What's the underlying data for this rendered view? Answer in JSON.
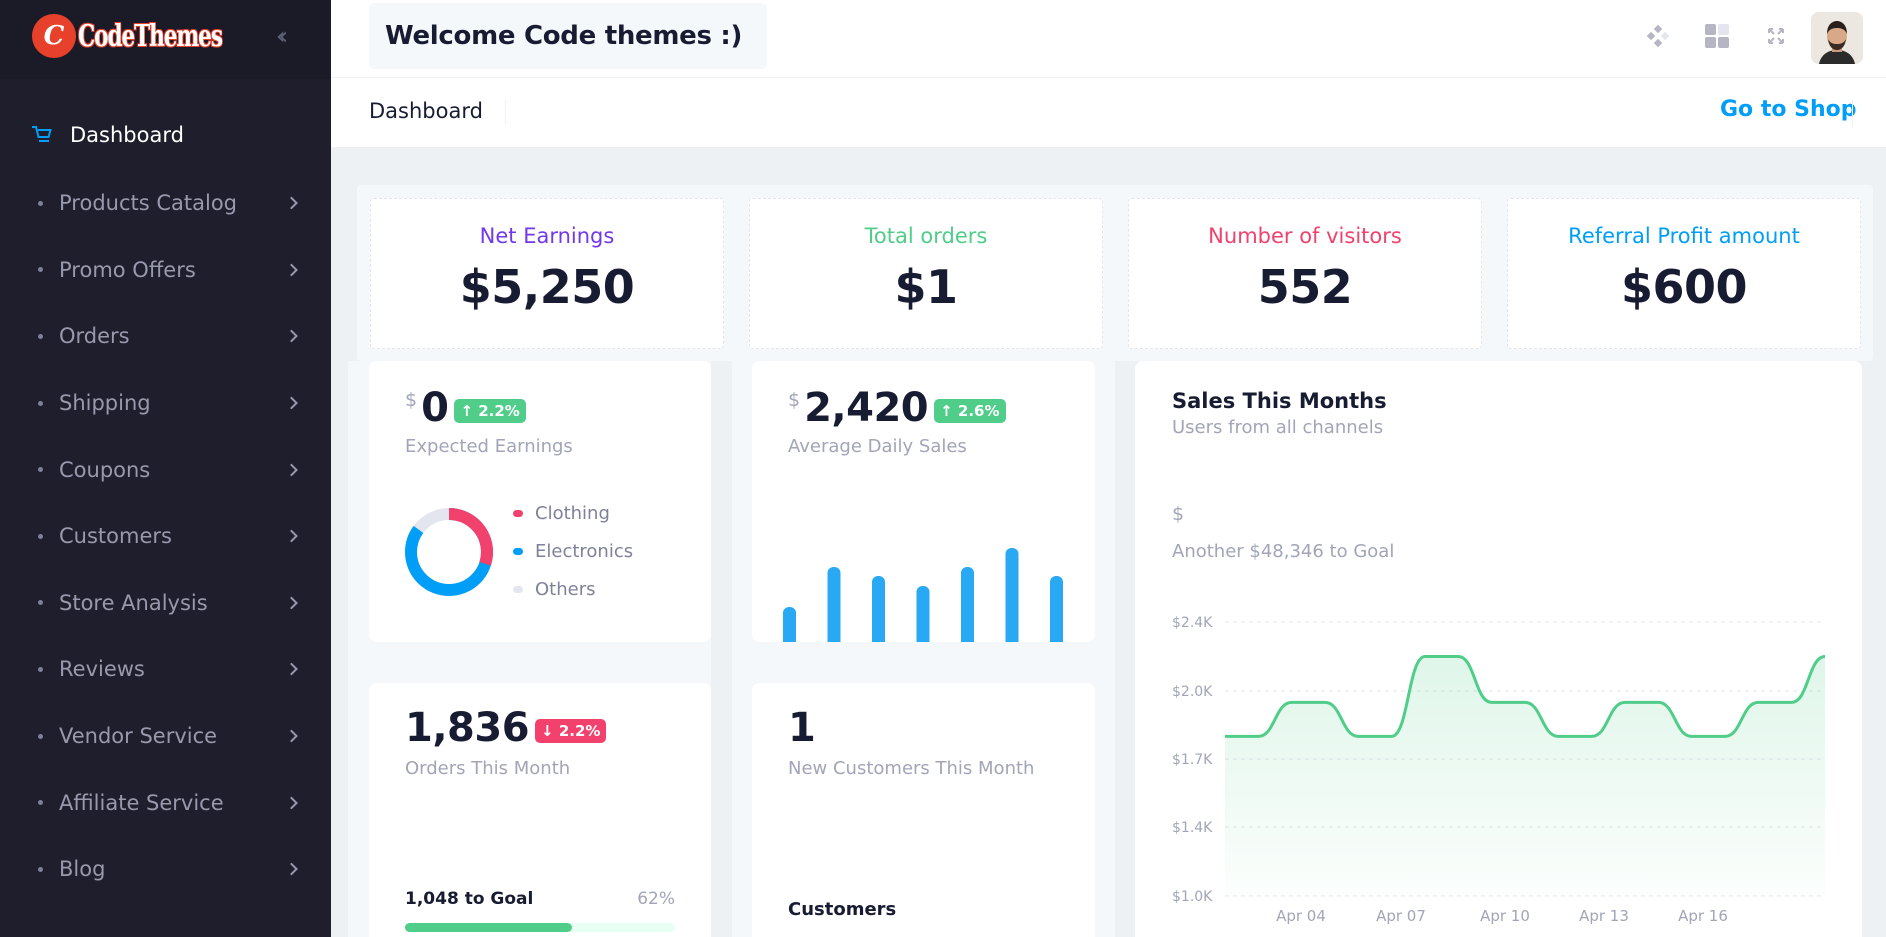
{
  "brand": {
    "logo_letter": "C",
    "logo_text": "CodeThemes",
    "accent": "#e8412b"
  },
  "sidebar": {
    "active": {
      "label": "Dashboard",
      "icon": "cart-icon"
    },
    "items": [
      {
        "label": "Products Catalog"
      },
      {
        "label": "Promo Offers"
      },
      {
        "label": "Orders"
      },
      {
        "label": "Shipping"
      },
      {
        "label": "Coupons"
      },
      {
        "label": "Customers"
      },
      {
        "label": "Store Analysis"
      },
      {
        "label": "Reviews"
      },
      {
        "label": "Vendor Service"
      },
      {
        "label": "Affiliate Service"
      },
      {
        "label": "Blog"
      }
    ]
  },
  "header": {
    "welcome": "Welcome Code themes :)",
    "icons": [
      "diamond-dots-icon",
      "grid-icon",
      "fullscreen-icon",
      "user-avatar"
    ]
  },
  "toolbar": {
    "title": "Dashboard",
    "shop_link": "Go to Shop"
  },
  "stats": [
    {
      "label": "Net Earnings",
      "value": "$5,250",
      "color": "#7239ea"
    },
    {
      "label": "Total orders",
      "value": "$1",
      "color": "#50cd89"
    },
    {
      "label": "Number of visitors",
      "value": "552",
      "color": "#f1416c"
    },
    {
      "label": "Referral Profit amount",
      "value": "$600",
      "color": "#009ef7"
    }
  ],
  "expected_earnings": {
    "currency": "$",
    "value": "0",
    "badge": "2.2%",
    "label": "Expected Earnings",
    "legend": [
      {
        "name": "Clothing",
        "color": "#f1416c",
        "share": 0.3
      },
      {
        "name": "Electronics",
        "color": "#009ef7",
        "share": 0.55
      },
      {
        "name": "Others",
        "color": "#e4e6ef",
        "share": 0.15
      }
    ]
  },
  "daily_sales": {
    "currency": "$",
    "value": "2,420",
    "badge": "2.6%",
    "label": "Average Daily Sales",
    "bars": [
      0.35,
      0.75,
      0.66,
      0.56,
      0.75,
      0.94,
      0.66
    ]
  },
  "orders_month": {
    "value": "1,836",
    "badge": "2.2%",
    "label": "Orders This Month",
    "goal_label": "1,048 to Goal",
    "goal_percent": "62%",
    "progress": 0.62
  },
  "new_customers": {
    "value": "1",
    "label": "New Customers This Month",
    "section": "Customers"
  },
  "sales_chart": {
    "title": "Sales This Months",
    "subtitle": "Users from all channels",
    "currency": "$",
    "goal_text": "Another $48,346 to Goal",
    "line_color": "#50cd89"
  },
  "chart_data": {
    "type": "area",
    "title": "Sales This Months",
    "y_ticks": [
      "$1.0K",
      "$1.4K",
      "$1.7K",
      "$2.0K",
      "$2.4K"
    ],
    "x_ticks": [
      "Apr 04",
      "Apr 07",
      "Apr 10",
      "Apr 13",
      "Apr 16"
    ],
    "ylim": [
      1000,
      2400
    ],
    "series": [
      {
        "values": [
          1800,
          1800,
          1950,
          1950,
          1800,
          1800,
          2200,
          2200,
          1950,
          1950,
          1800,
          1800,
          1950,
          1950,
          1800,
          1800,
          1950,
          1950,
          2200
        ]
      }
    ],
    "grid": true
  }
}
